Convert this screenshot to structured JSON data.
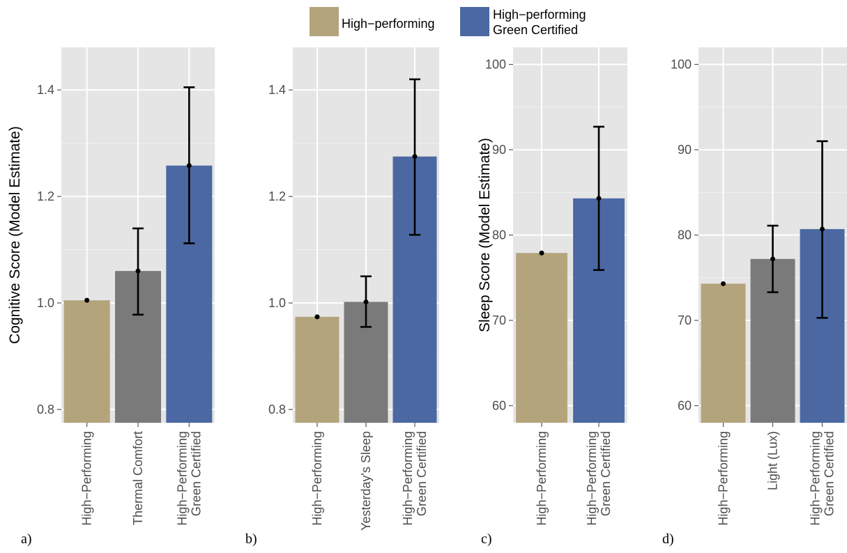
{
  "legend": {
    "items": [
      {
        "label": "High−performing",
        "color": "#b4a47c"
      },
      {
        "label_lines": [
          "High−performing",
          "Green Certified"
        ],
        "color": "#4b68a3"
      }
    ]
  },
  "chart_data": [
    {
      "type": "bar",
      "panel_tag": "a)",
      "ylabel": "Cognitive Score (Model Estimate)",
      "ylim": [
        0.775,
        1.48
      ],
      "yticks": [
        0.8,
        1.0,
        1.2,
        1.4
      ],
      "ytick_labels": [
        "0.8",
        "1.0",
        "1.2",
        "1.4"
      ],
      "grid": true,
      "categories": [
        [
          "High−Performing"
        ],
        [
          "Thermal Comfort"
        ],
        [
          "High−Performing",
          "Green Certified"
        ]
      ],
      "values": [
        1.005,
        1.06,
        1.258
      ],
      "err_low": [
        1.005,
        0.978,
        1.112
      ],
      "err_high": [
        1.005,
        1.14,
        1.405
      ],
      "colors": [
        "#b4a47c",
        "#7a7a7a",
        "#4b68a3"
      ]
    },
    {
      "type": "bar",
      "panel_tag": "b)",
      "ylabel": "",
      "ylim": [
        0.775,
        1.48
      ],
      "yticks": [
        0.8,
        1.0,
        1.2,
        1.4
      ],
      "ytick_labels": [
        "0.8",
        "1.0",
        "1.2",
        "1.4"
      ],
      "grid": true,
      "categories": [
        [
          "High−Performing"
        ],
        [
          "Yesterday's Sleep"
        ],
        [
          "High−Performing",
          "Green Certified"
        ]
      ],
      "values": [
        0.974,
        1.002,
        1.275
      ],
      "err_low": [
        0.974,
        0.955,
        1.128
      ],
      "err_high": [
        0.974,
        1.05,
        1.42
      ],
      "colors": [
        "#b4a47c",
        "#7a7a7a",
        "#4b68a3"
      ]
    },
    {
      "type": "bar",
      "panel_tag": "c)",
      "ylabel": "Sleep Score (Model Estimate)",
      "ylim": [
        58,
        102
      ],
      "yticks": [
        60,
        70,
        80,
        90,
        100
      ],
      "ytick_labels": [
        "60",
        "70",
        "80",
        "90",
        "100"
      ],
      "grid": true,
      "categories": [
        [
          "High−Performing"
        ],
        [
          "High−Performing",
          "Green Certified"
        ]
      ],
      "values": [
        77.9,
        84.3
      ],
      "err_low": [
        77.9,
        75.9
      ],
      "err_high": [
        77.9,
        92.7
      ],
      "colors": [
        "#b4a47c",
        "#4b68a3"
      ]
    },
    {
      "type": "bar",
      "panel_tag": "d)",
      "ylabel": "",
      "ylim": [
        58,
        102
      ],
      "yticks": [
        60,
        70,
        80,
        90,
        100
      ],
      "ytick_labels": [
        "60",
        "70",
        "80",
        "90",
        "100"
      ],
      "grid": true,
      "categories": [
        [
          "High−Performing"
        ],
        [
          "Light (Lux)"
        ],
        [
          "High−Performing",
          "Green Certified"
        ]
      ],
      "values": [
        74.3,
        77.2,
        80.7
      ],
      "err_low": [
        74.3,
        73.3,
        70.3
      ],
      "err_high": [
        74.3,
        81.1,
        91.0
      ],
      "colors": [
        "#b4a47c",
        "#7a7a7a",
        "#4b68a3"
      ]
    }
  ]
}
